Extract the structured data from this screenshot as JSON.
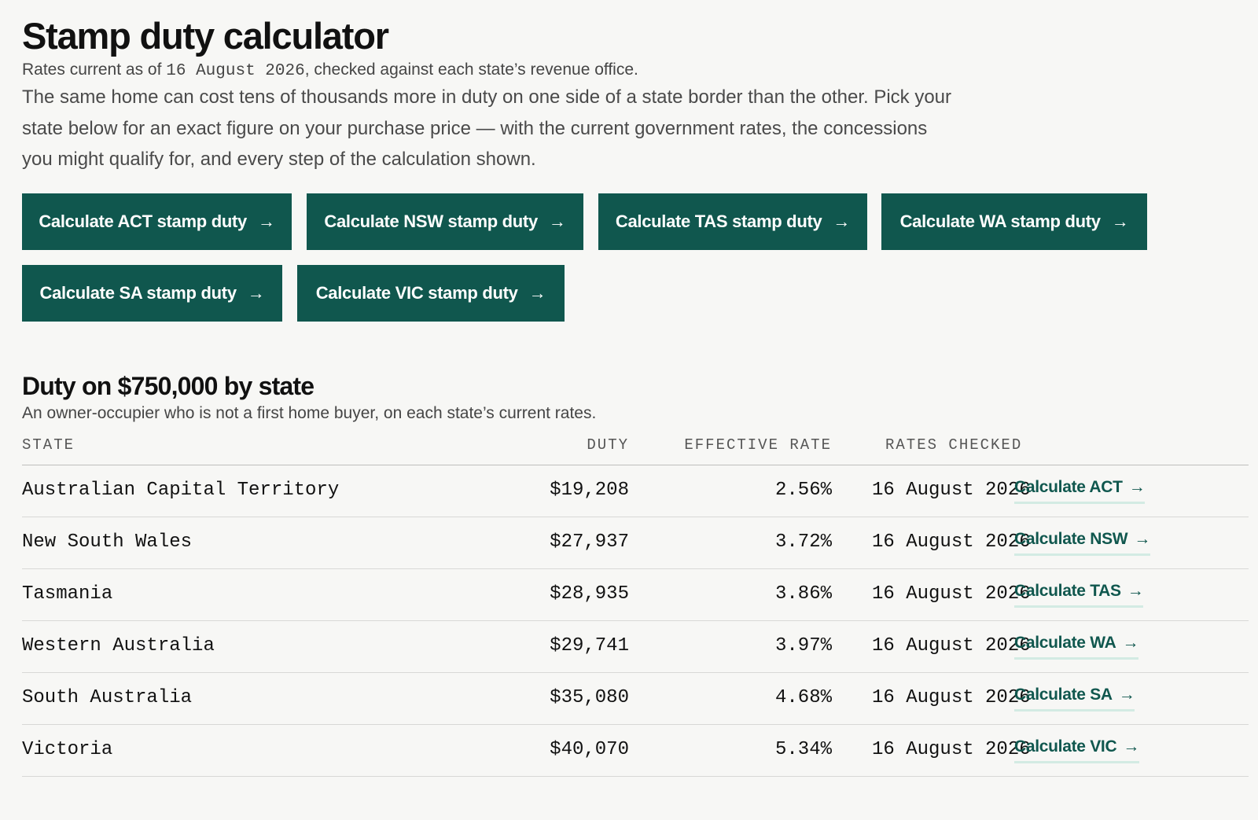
{
  "header": {
    "title": "Stamp duty calculator",
    "rates_prefix": "Rates current as of",
    "rates_date": "16 August 2026",
    "rates_suffix": ", checked against each state’s revenue office.",
    "intro": "The same home can cost tens of thousands more in duty on one side of a state border than the other. Pick your state below for an exact figure on your purchase price — with the current government rates, the concessions you might qualify for, and every step of the calculation shown."
  },
  "buttons": {
    "arrow": "→",
    "act": "Calculate ACT stamp duty",
    "nsw": "Calculate NSW stamp duty",
    "tas": "Calculate TAS stamp duty",
    "wa": "Calculate WA stamp duty",
    "sa": "Calculate SA stamp duty",
    "vic": "Calculate VIC stamp duty"
  },
  "comparison": {
    "title": "Duty on $750,000 by state",
    "subtitle": "An owner-occupier who is not a first home buyer, on each state’s current rates.",
    "columns": {
      "state": "STATE",
      "duty": "DUTY",
      "rate": "EFFECTIVE RATE",
      "checked": "RATES CHECKED"
    },
    "link_arrow": "→",
    "rows": [
      {
        "state": "Australian Capital Territory",
        "duty": "$19,208",
        "rate": "2.56%",
        "checked": "16 August 2026",
        "link": "Calculate ACT"
      },
      {
        "state": "New South Wales",
        "duty": "$27,937",
        "rate": "3.72%",
        "checked": "16 August 2026",
        "link": "Calculate NSW"
      },
      {
        "state": "Tasmania",
        "duty": "$28,935",
        "rate": "3.86%",
        "checked": "16 August 2026",
        "link": "Calculate TAS"
      },
      {
        "state": "Western Australia",
        "duty": "$29,741",
        "rate": "3.97%",
        "checked": "16 August 2026",
        "link": "Calculate WA"
      },
      {
        "state": "South Australia",
        "duty": "$35,080",
        "rate": "4.68%",
        "checked": "16 August 2026",
        "link": "Calculate SA"
      },
      {
        "state": "Victoria",
        "duty": "$40,070",
        "rate": "5.34%",
        "checked": "16 August 2026",
        "link": "Calculate VIC"
      }
    ]
  },
  "colors": {
    "background": "#f7f7f5",
    "button": "#10574e",
    "link": "#10574e",
    "link_underline": "#d3ebe3"
  }
}
